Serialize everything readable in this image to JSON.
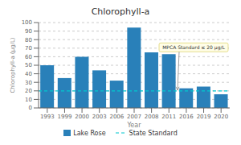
{
  "chart_data": {
    "type": "bar",
    "title": "Chlorophyll-a",
    "xlabel": "Year",
    "ylabel": "Chlorophyll-a (µg/L)",
    "categories": [
      "1993",
      "1999",
      "2000",
      "2003",
      "2006",
      "2007",
      "2008",
      "2011",
      "2016",
      "2019",
      "2020"
    ],
    "series": [
      {
        "name": "Lake Rose",
        "color": "#2980b9",
        "values": [
          50,
          35,
          60,
          44,
          32,
          94,
          65,
          63,
          23,
          25,
          16
        ]
      }
    ],
    "reference_lines": [
      {
        "name": "State Standard",
        "value": 20,
        "color": "#00c8d0",
        "line_style": "dashed"
      }
    ],
    "annotations": [
      {
        "text": "MPCA Standard ≤ 20 µg/L"
      }
    ],
    "ylim": [
      0,
      100
    ],
    "yticks": [
      0,
      10,
      20,
      30,
      40,
      50,
      60,
      70,
      80,
      90,
      100
    ],
    "grid": true,
    "legend": "bottom"
  }
}
